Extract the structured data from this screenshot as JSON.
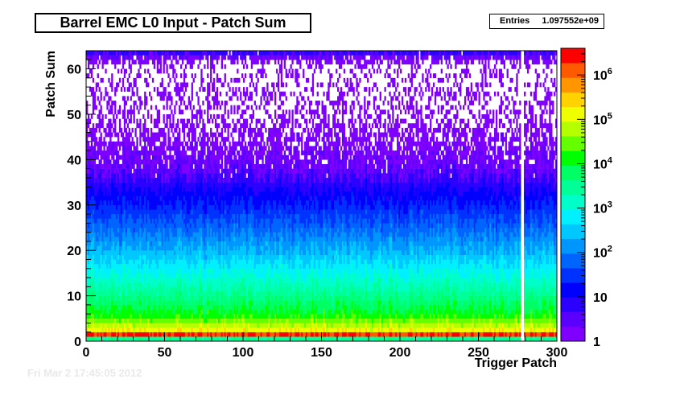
{
  "chart_data": {
    "type": "heatmap",
    "title": "Barrel EMC L0 Input - Patch Sum",
    "xlabel": "Trigger Patch",
    "ylabel": "Patch Sum",
    "xlim": [
      0,
      300
    ],
    "ylim": [
      0,
      64
    ],
    "x_ticks": [
      "0",
      "50",
      "100",
      "150",
      "200",
      "250",
      "300"
    ],
    "y_ticks": [
      "0",
      "10",
      "20",
      "30",
      "40",
      "50",
      "60"
    ],
    "z_scale": "log",
    "zlim": [
      1,
      4000000
    ],
    "colorbar_ticks": [
      {
        "value": 1,
        "label": "1"
      },
      {
        "value": 10,
        "label": "10"
      },
      {
        "value": 100,
        "label": "10",
        "exp": "2"
      },
      {
        "value": 1000,
        "label": "10",
        "exp": "3"
      },
      {
        "value": 10000,
        "label": "10",
        "exp": "4"
      },
      {
        "value": 100000,
        "label": "10",
        "exp": "5"
      },
      {
        "value": 1000000,
        "label": "10",
        "exp": "6"
      }
    ],
    "stats": {
      "label": "Entries",
      "value": "1.097552e+09"
    },
    "grid": false,
    "empty_patches": [
      277,
      278
    ],
    "typical_counts_by_patch_sum": [
      {
        "y": 0,
        "count": 3000
      },
      {
        "y": 1,
        "count": 2000000
      },
      {
        "y": 2,
        "count": 150000
      },
      {
        "y": 5,
        "count": 15000
      },
      {
        "y": 10,
        "count": 3000
      },
      {
        "y": 15,
        "count": 800
      },
      {
        "y": 20,
        "count": 200
      },
      {
        "y": 25,
        "count": 60
      },
      {
        "y": 30,
        "count": 20
      },
      {
        "y": 35,
        "count": 6
      },
      {
        "y": 40,
        "count": 2
      },
      {
        "y": 50,
        "count": 0.5
      },
      {
        "y": 60,
        "count": 0.3
      },
      {
        "y": 63,
        "count": 5
      }
    ]
  },
  "footer_text": "Fri Mar  2 17:45:05 2012"
}
